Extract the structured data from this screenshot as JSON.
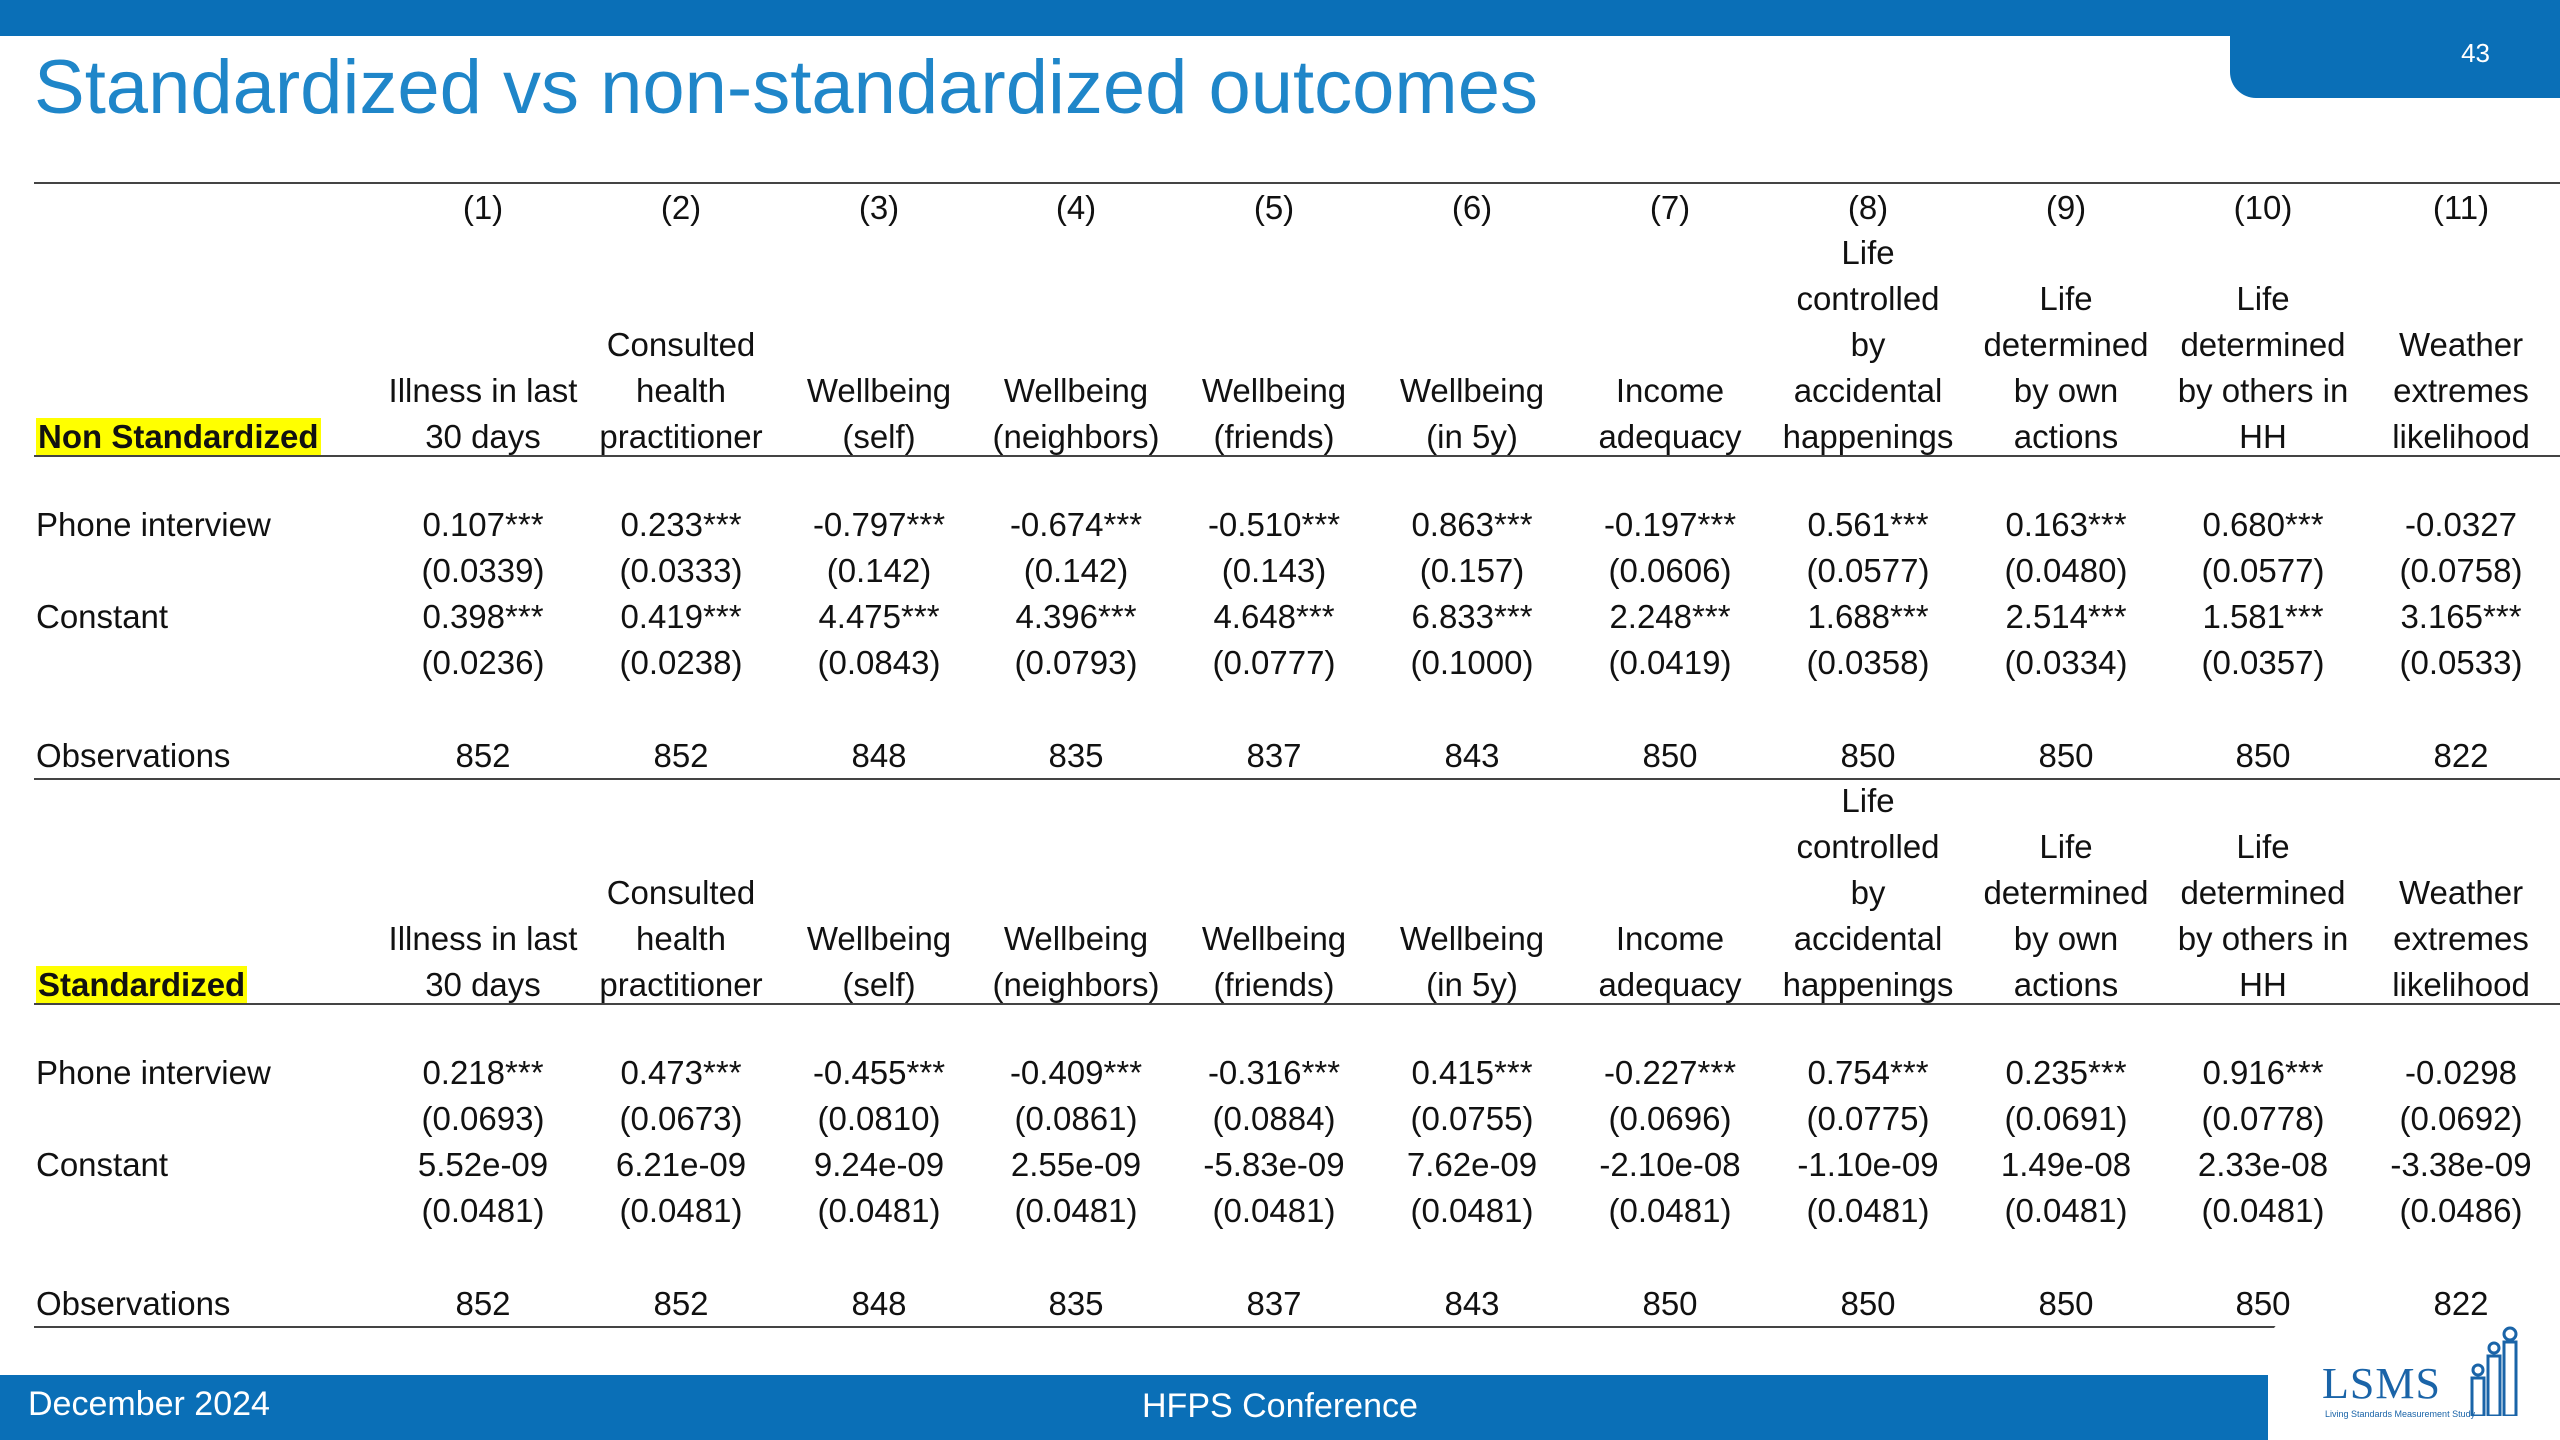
{
  "page_number": "43",
  "title": "Standardized vs non-standardized outcomes",
  "column_numbers": [
    "(1)",
    "(2)",
    "(3)",
    "(4)",
    "(5)",
    "(6)",
    "(7)",
    "(8)",
    "(9)",
    "(10)",
    "(11)"
  ],
  "column_labels": [
    [
      "Illness in last",
      "30 days"
    ],
    [
      "Consulted",
      "health",
      "practitioner"
    ],
    [
      "Wellbeing",
      "(self)"
    ],
    [
      "Wellbeing",
      "(neighbors)"
    ],
    [
      "Wellbeing",
      "(friends)"
    ],
    [
      "Wellbeing",
      "(in 5y)"
    ],
    [
      "Income",
      "adequacy"
    ],
    [
      "Life",
      "controlled",
      "by",
      "accidental",
      "happenings"
    ],
    [
      "Life",
      "determined",
      "by own",
      "actions"
    ],
    [
      "Life",
      "determined",
      "by others in",
      "HH"
    ],
    [
      "Weather",
      "extremes",
      "likelihood"
    ]
  ],
  "panels": [
    {
      "label": "Non Standardized",
      "phone_label": "Phone interview",
      "phone": [
        "0.107***",
        "0.233***",
        "-0.797***",
        "-0.674***",
        "-0.510***",
        "0.863***",
        "-0.197***",
        "0.561***",
        "0.163***",
        "0.680***",
        "-0.0327"
      ],
      "phone_se": [
        "(0.0339)",
        "(0.0333)",
        "(0.142)",
        "(0.142)",
        "(0.143)",
        "(0.157)",
        "(0.0606)",
        "(0.0577)",
        "(0.0480)",
        "(0.0577)",
        "(0.0758)"
      ],
      "constant_label": "Constant",
      "constant": [
        "0.398***",
        "0.419***",
        "4.475***",
        "4.396***",
        "4.648***",
        "6.833***",
        "2.248***",
        "1.688***",
        "2.514***",
        "1.581***",
        "3.165***"
      ],
      "constant_se": [
        "(0.0236)",
        "(0.0238)",
        "(0.0843)",
        "(0.0793)",
        "(0.0777)",
        "(0.1000)",
        "(0.0419)",
        "(0.0358)",
        "(0.0334)",
        "(0.0357)",
        "(0.0533)"
      ],
      "obs_label": "Observations",
      "observations": [
        "852",
        "852",
        "848",
        "835",
        "837",
        "843",
        "850",
        "850",
        "850",
        "850",
        "822"
      ]
    },
    {
      "label": "Standardized",
      "phone_label": "Phone interview",
      "phone": [
        "0.218***",
        "0.473***",
        "-0.455***",
        "-0.409***",
        "-0.316***",
        "0.415***",
        "-0.227***",
        "0.754***",
        "0.235***",
        "0.916***",
        "-0.0298"
      ],
      "phone_se": [
        "(0.0693)",
        "(0.0673)",
        "(0.0810)",
        "(0.0861)",
        "(0.0884)",
        "(0.0755)",
        "(0.0696)",
        "(0.0775)",
        "(0.0691)",
        "(0.0778)",
        "(0.0692)"
      ],
      "constant_label": "Constant",
      "constant": [
        "5.52e-09",
        "6.21e-09",
        "9.24e-09",
        "2.55e-09",
        "-5.83e-09",
        "7.62e-09",
        "-2.10e-08",
        "-1.10e-09",
        "1.49e-08",
        "2.33e-08",
        "-3.38e-09"
      ],
      "constant_se": [
        "(0.0481)",
        "(0.0481)",
        "(0.0481)",
        "(0.0481)",
        "(0.0481)",
        "(0.0481)",
        "(0.0481)",
        "(0.0481)",
        "(0.0481)",
        "(0.0481)",
        "(0.0486)"
      ],
      "obs_label": "Observations",
      "observations": [
        "852",
        "852",
        "848",
        "835",
        "837",
        "843",
        "850",
        "850",
        "850",
        "850",
        "822"
      ]
    }
  ],
  "footer": {
    "date": "December 2024",
    "conference": "HFPS Conference",
    "logo_text": "LSMS",
    "logo_subtitle": "Living Standards Measurement Study"
  },
  "colors": {
    "brand_blue": "#0a6fb7",
    "title_blue": "#1f86c9",
    "highlight": "#ffff00"
  }
}
